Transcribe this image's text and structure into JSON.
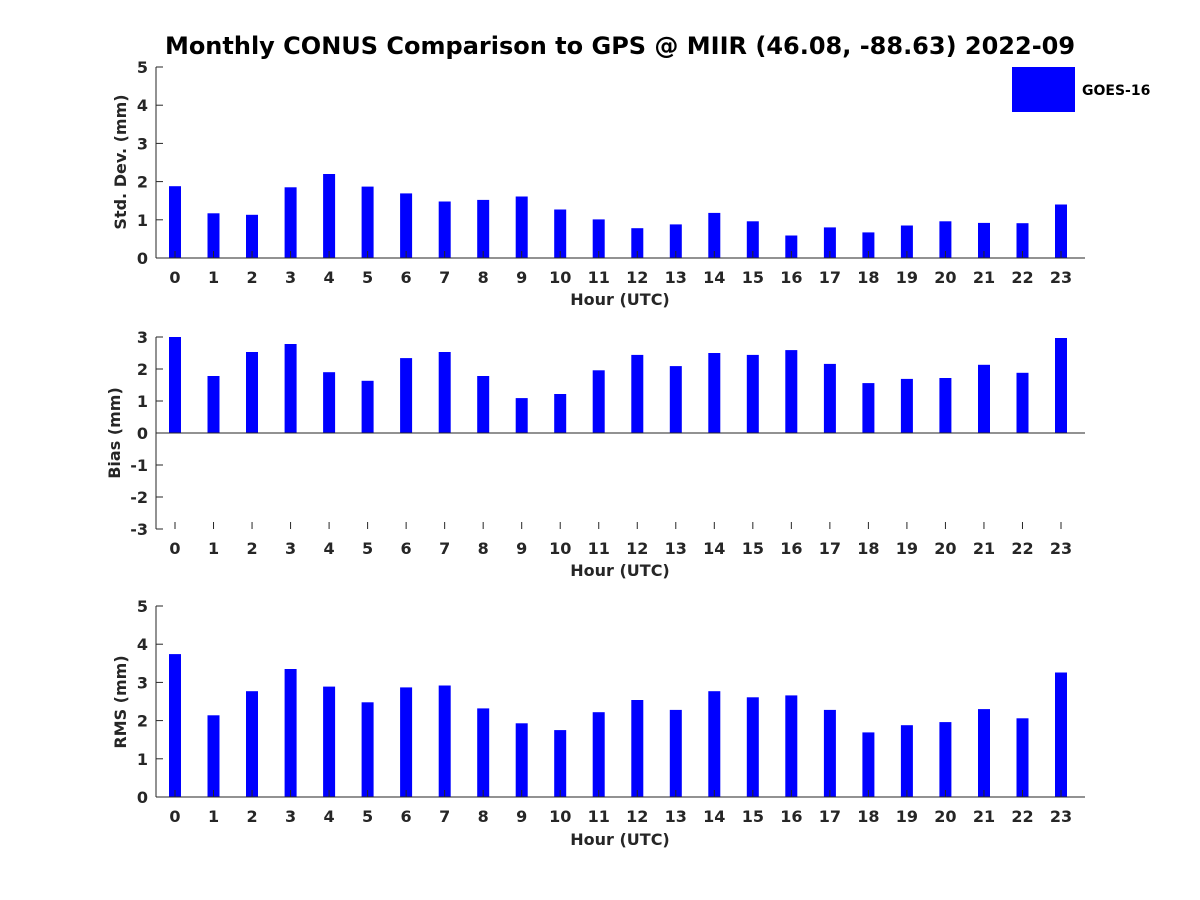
{
  "chart_data": {
    "title": "Monthly CONUS Comparison to GPS @ MIIR (46.08, -88.63) 2022-09",
    "legend": {
      "label": "GOES-16",
      "color": "#0000ff",
      "placement": "top-right"
    },
    "bar_color": "#0000ff",
    "panels": [
      {
        "type": "bar",
        "ylabel": "Std. Dev. (mm)",
        "xlabel": "Hour (UTC)",
        "ylim": [
          0,
          5
        ],
        "yticks": [
          0,
          1,
          2,
          3,
          4,
          5
        ],
        "categories": [
          "0",
          "1",
          "2",
          "3",
          "4",
          "5",
          "6",
          "7",
          "8",
          "9",
          "10",
          "11",
          "12",
          "13",
          "14",
          "15",
          "16",
          "17",
          "18",
          "19",
          "20",
          "21",
          "22",
          "23"
        ],
        "series": [
          {
            "name": "GOES-16",
            "values": [
              1.88,
              1.17,
              1.13,
              1.85,
              2.2,
              1.87,
              1.69,
              1.48,
              1.52,
              1.61,
              1.27,
              1.01,
              0.78,
              0.88,
              1.18,
              0.96,
              0.59,
              0.8,
              0.67,
              0.85,
              0.96,
              0.92,
              0.91,
              1.4
            ]
          }
        ]
      },
      {
        "type": "bar",
        "ylabel": "Bias (mm)",
        "xlabel": "Hour (UTC)",
        "ylim": [
          -3,
          3
        ],
        "yticks": [
          -3,
          -2,
          -1,
          0,
          1,
          2,
          3
        ],
        "categories": [
          "0",
          "1",
          "2",
          "3",
          "4",
          "5",
          "6",
          "7",
          "8",
          "9",
          "10",
          "11",
          "12",
          "13",
          "14",
          "15",
          "16",
          "17",
          "18",
          "19",
          "20",
          "21",
          "22",
          "23"
        ],
        "series": [
          {
            "name": "GOES-16",
            "values": [
              3.0,
              1.78,
              2.53,
              2.78,
              1.9,
              1.63,
              2.34,
              2.53,
              1.78,
              1.09,
              1.22,
              1.96,
              2.44,
              2.09,
              2.5,
              2.44,
              2.59,
              2.16,
              1.56,
              1.69,
              1.72,
              2.13,
              1.88,
              2.97
            ]
          }
        ]
      },
      {
        "type": "bar",
        "ylabel": "RMS (mm)",
        "xlabel": "Hour (UTC)",
        "ylim": [
          0,
          5
        ],
        "yticks": [
          0,
          1,
          2,
          3,
          4,
          5
        ],
        "categories": [
          "0",
          "1",
          "2",
          "3",
          "4",
          "5",
          "6",
          "7",
          "8",
          "9",
          "10",
          "11",
          "12",
          "13",
          "14",
          "15",
          "16",
          "17",
          "18",
          "19",
          "20",
          "21",
          "22",
          "23"
        ],
        "series": [
          {
            "name": "GOES-16",
            "values": [
              3.74,
              2.14,
              2.77,
              3.35,
              2.89,
              2.48,
              2.87,
              2.92,
              2.32,
              1.93,
              1.75,
              2.22,
              2.54,
              2.28,
              2.77,
              2.61,
              2.66,
              2.28,
              1.69,
              1.88,
              1.96,
              2.3,
              2.06,
              3.26
            ]
          }
        ]
      }
    ]
  }
}
